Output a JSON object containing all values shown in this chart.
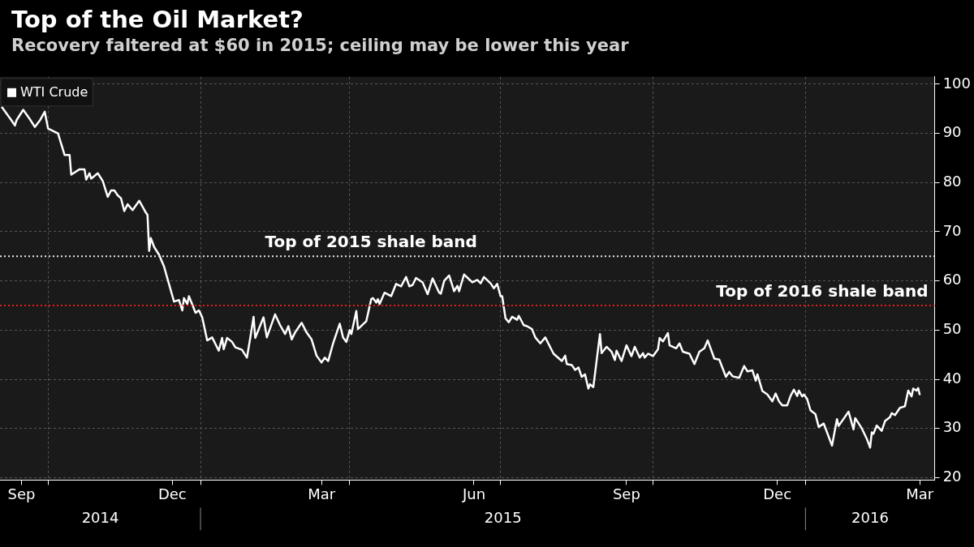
{
  "chart_data": {
    "type": "line",
    "title": "Top of the Oil Market?",
    "subtitle": "Recovery faltered at $60 in 2015; ceiling may be lower this year",
    "legend": "top left",
    "grid": true,
    "marker": "none",
    "line_style": "solid",
    "xlim": [
      "2014-09-02",
      "2016-03-19"
    ],
    "xticks": [
      {
        "value": "2014-09-15",
        "label": "Sep"
      },
      {
        "value": "2014-10-01",
        "label": null
      },
      {
        "value": "2014-12-15",
        "label": "Dec"
      },
      {
        "value": "2015-01-01",
        "label": null
      },
      {
        "value": "2015-03-15",
        "label": "Mar"
      },
      {
        "value": "2015-04-01",
        "label": null
      },
      {
        "value": "2015-06-15",
        "label": "Jun"
      },
      {
        "value": "2015-07-01",
        "label": null
      },
      {
        "value": "2015-09-15",
        "label": "Sep"
      },
      {
        "value": "2015-10-01",
        "label": null
      },
      {
        "value": "2015-12-15",
        "label": "Dec"
      },
      {
        "value": "2016-01-01",
        "label": null
      },
      {
        "value": "2016-03-10",
        "label": "Mar"
      }
    ],
    "ylim": [
      19.5,
      101.5
    ],
    "yticks": [
      20,
      30,
      40,
      50,
      60,
      70,
      80,
      90,
      100
    ],
    "annotations": [
      "2014",
      "2015",
      "2016"
    ],
    "ref_lines": [
      {
        "axis": "y",
        "value": 65,
        "label": "Top of 2015 shale band",
        "color": "#e6e6e6",
        "line_style": "dotted"
      },
      {
        "axis": "y",
        "value": 55,
        "label": "Top of 2016 shale band",
        "color": "#e0201b",
        "line_style": "dotted"
      }
    ],
    "series": [
      {
        "name": "WTI Crude",
        "color": "#ffffff",
        "x": [
          "2014-09-03",
          "2014-09-09",
          "2014-09-11",
          "2014-09-12",
          "2014-09-16",
          "2014-09-20",
          "2014-09-23",
          "2014-09-26",
          "2014-09-29",
          "2014-10-01",
          "2014-10-04",
          "2014-10-07",
          "2014-10-11",
          "2014-10-14",
          "2014-10-15",
          "2014-10-20",
          "2014-10-23",
          "2014-10-24",
          "2014-10-26",
          "2014-10-27",
          "2014-10-31",
          "2014-11-03",
          "2014-11-06",
          "2014-11-08",
          "2014-11-10",
          "2014-11-12",
          "2014-11-14",
          "2014-11-16",
          "2014-11-18",
          "2014-11-21",
          "2014-11-25",
          "2014-11-29",
          "2014-11-30",
          "2014-12-01",
          "2014-12-02",
          "2014-12-04",
          "2014-12-07",
          "2014-12-10",
          "2014-12-12",
          "2014-12-16",
          "2014-12-19",
          "2014-12-21",
          "2014-12-22",
          "2014-12-24",
          "2014-12-25",
          "2014-12-29",
          "2014-12-31",
          "2015-01-02",
          "2015-01-05",
          "2015-01-08",
          "2015-01-12",
          "2015-01-14",
          "2015-01-15",
          "2015-01-17",
          "2015-01-20",
          "2015-01-22",
          "2015-01-26",
          "2015-01-29",
          "2015-01-31",
          "2015-02-02",
          "2015-02-03",
          "2015-02-08",
          "2015-02-10",
          "2015-02-15",
          "2015-02-18",
          "2015-02-21",
          "2015-02-23",
          "2015-02-25",
          "2015-02-27",
          "2015-03-03",
          "2015-03-06",
          "2015-03-09",
          "2015-03-12",
          "2015-03-15",
          "2015-03-17",
          "2015-03-19",
          "2015-03-22",
          "2015-03-26",
          "2015-03-28",
          "2015-03-30",
          "2015-04-01",
          "2015-04-02",
          "2015-04-05",
          "2015-04-06",
          "2015-04-11",
          "2015-04-14",
          "2015-04-15",
          "2015-04-17",
          "2015-04-18",
          "2015-04-19",
          "2015-04-22",
          "2015-04-26",
          "2015-04-29",
          "2015-05-02",
          "2015-05-05",
          "2015-05-07",
          "2015-05-09",
          "2015-05-11",
          "2015-05-15",
          "2015-05-18",
          "2015-05-21",
          "2015-05-25",
          "2015-05-26",
          "2015-05-28",
          "2015-05-31",
          "2015-06-03",
          "2015-06-05",
          "2015-06-06",
          "2015-06-09",
          "2015-06-14",
          "2015-06-17",
          "2015-06-19",
          "2015-06-21",
          "2015-06-25",
          "2015-06-27",
          "2015-06-29",
          "2015-07-01",
          "2015-07-02",
          "2015-07-04",
          "2015-07-06",
          "2015-07-08",
          "2015-07-11",
          "2015-07-12",
          "2015-07-15",
          "2015-07-17",
          "2015-07-20",
          "2015-07-22",
          "2015-07-25",
          "2015-07-28",
          "2015-08-02",
          "2015-08-07",
          "2015-08-09",
          "2015-08-10",
          "2015-08-13",
          "2015-08-15",
          "2015-08-17",
          "2015-08-19",
          "2015-08-21",
          "2015-08-23",
          "2015-08-24",
          "2015-08-26",
          "2015-08-30",
          "2015-08-31",
          "2015-09-03",
          "2015-09-06",
          "2015-09-08",
          "2015-09-09",
          "2015-09-12",
          "2015-09-15",
          "2015-09-18",
          "2015-09-20",
          "2015-09-23",
          "2015-09-25",
          "2015-09-26",
          "2015-09-28",
          "2015-10-01",
          "2015-10-04",
          "2015-10-05",
          "2015-10-07",
          "2015-10-10",
          "2015-10-11",
          "2015-10-15",
          "2015-10-17",
          "2015-10-19",
          "2015-10-23",
          "2015-10-26",
          "2015-10-29",
          "2015-11-01",
          "2015-11-03",
          "2015-11-07",
          "2015-11-10",
          "2015-11-14",
          "2015-11-16",
          "2015-11-18",
          "2015-11-22",
          "2015-11-25",
          "2015-11-27",
          "2015-11-30",
          "2015-12-02",
          "2015-12-03",
          "2015-12-06",
          "2015-12-09",
          "2015-12-12",
          "2015-12-14",
          "2015-12-16",
          "2015-12-18",
          "2015-12-21",
          "2015-12-23",
          "2015-12-25",
          "2015-12-27",
          "2015-12-28",
          "2015-12-30",
          "2015-12-31",
          "2016-01-02",
          "2016-01-04",
          "2016-01-07",
          "2016-01-09",
          "2016-01-12",
          "2016-01-14",
          "2016-01-17",
          "2016-01-20",
          "2016-01-21",
          "2016-01-27",
          "2016-01-30",
          "2016-01-31",
          "2016-02-04",
          "2016-02-07",
          "2016-02-09",
          "2016-02-10",
          "2016-02-11",
          "2016-02-13",
          "2016-02-16",
          "2016-02-18",
          "2016-02-21",
          "2016-02-22",
          "2016-02-24",
          "2016-02-27",
          "2016-03-01",
          "2016-03-03",
          "2016-03-05",
          "2016-03-06",
          "2016-03-08",
          "2016-03-09",
          "2016-03-10"
        ],
        "values": [
          95.4,
          92.6,
          91.6,
          92.7,
          94.8,
          92.9,
          91.3,
          92.6,
          94.4,
          91.0,
          90.5,
          90,
          85.6,
          85.6,
          81.6,
          82.7,
          82.7,
          80.6,
          81.9,
          80.8,
          81.9,
          80.3,
          77.1,
          78.4,
          78.4,
          77.4,
          76.8,
          74.2,
          75.6,
          74.4,
          76.3,
          73.9,
          73.4,
          66.1,
          68.7,
          66.9,
          65.3,
          62.9,
          60.5,
          55.8,
          56.1,
          54,
          56.5,
          55.3,
          56.9,
          53.5,
          54.0,
          52.6,
          47.9,
          48.5,
          45.8,
          48.4,
          46.1,
          48.4,
          47.6,
          46.5,
          46,
          44.4,
          48.4,
          52.7,
          48.4,
          52.6,
          48.5,
          53.2,
          51,
          49.2,
          50.8,
          48.1,
          49.5,
          51.5,
          49.5,
          48.1,
          44.8,
          43.4,
          44.4,
          43.7,
          47.3,
          51.3,
          48.5,
          47.6,
          50,
          49.2,
          53.9,
          50.2,
          51.8,
          56.3,
          56.5,
          55.6,
          56.3,
          55.3,
          57.6,
          56.9,
          59.4,
          58.9,
          60.8,
          58.9,
          59.2,
          60.6,
          59.7,
          57.3,
          60.5,
          57.6,
          57.4,
          60,
          61.1,
          57.9,
          59,
          57.9,
          61.3,
          59.7,
          60.2,
          59.5,
          60.8,
          59.5,
          58.5,
          59.4,
          56.9,
          56.9,
          52.4,
          51.6,
          52.7,
          52.1,
          52.9,
          51,
          50.8,
          50.2,
          48.5,
          47.3,
          48.5,
          45.2,
          43.7,
          44.8,
          43.1,
          42.9,
          41.9,
          42.4,
          40.5,
          41,
          38.1,
          39,
          38.4,
          49.2,
          45.3,
          46.6,
          45.6,
          43.9,
          45.8,
          43.7,
          46.9,
          44.7,
          46.6,
          44.4,
          45.3,
          44.4,
          45.2,
          44.7,
          46.1,
          48.4,
          47.7,
          49.4,
          46.9,
          46.3,
          47.3,
          45.6,
          45.2,
          43.1,
          45.6,
          46.3,
          47.9,
          44.2,
          44,
          40.5,
          41.5,
          40.6,
          40.3,
          42.7,
          41.6,
          41.8,
          39.7,
          41,
          37.6,
          36.9,
          35.5,
          37.1,
          35.5,
          34.7,
          34.7,
          36.6,
          37.9,
          36.6,
          37.7,
          36.5,
          36.9,
          36,
          33.7,
          32.9,
          30.3,
          31,
          29.2,
          26.5,
          31.9,
          30.5,
          33.4,
          29.8,
          32.1,
          30,
          27.9,
          26.1,
          29.2,
          28.9,
          30.6,
          29.5,
          31.5,
          32.3,
          33.1,
          32.7,
          34.2,
          34.5,
          37.7,
          36.5,
          38.1,
          37.7,
          38.2,
          36.8
        ]
      }
    ]
  }
}
